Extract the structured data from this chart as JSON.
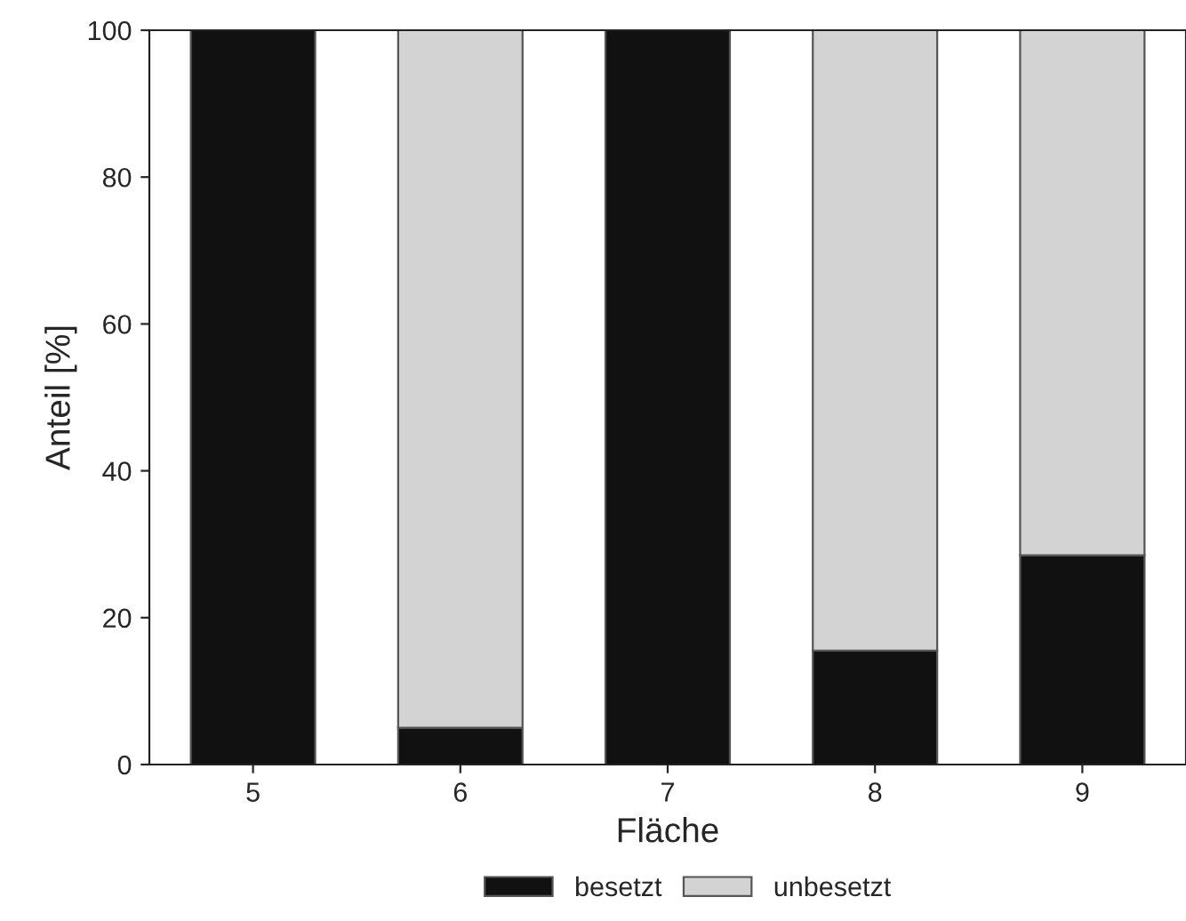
{
  "chart_data": {
    "type": "bar",
    "stacked": true,
    "xlabel": "Fläche",
    "ylabel": "Anteil [%]",
    "categories": [
      "5",
      "6",
      "7",
      "8",
      "9"
    ],
    "series": [
      {
        "name": "besetzt",
        "color": "#111111",
        "values": [
          100,
          5,
          100,
          15.5,
          28.5
        ]
      },
      {
        "name": "unbesetzt",
        "color": "#d3d3d3",
        "values": [
          0,
          95,
          0,
          84.5,
          71.5
        ]
      }
    ],
    "ylim": [
      0,
      100
    ],
    "yticks": [
      0,
      20,
      40,
      60,
      80,
      100
    ],
    "grid": false,
    "legend": "bottom"
  }
}
